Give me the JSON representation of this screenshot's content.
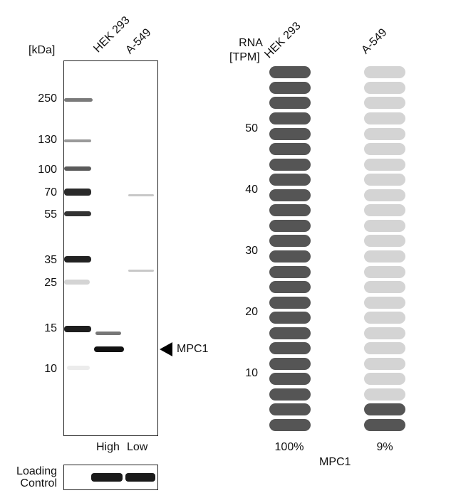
{
  "western_blot": {
    "unit_label": "[kDa]",
    "lanes": [
      "HEK 293",
      "A-549"
    ],
    "markers": [
      "250",
      "130",
      "100",
      "70",
      "55",
      "35",
      "25",
      "15",
      "10"
    ],
    "target_label": "MPC1",
    "exposure_labels": [
      "High",
      "Low"
    ],
    "loading_control_label": [
      "Loading",
      "Control"
    ]
  },
  "rna": {
    "axis_title": [
      "RNA",
      "[TPM]"
    ],
    "cell_lines": [
      "HEK 293",
      "A-549"
    ],
    "ticks": [
      "10",
      "20",
      "30",
      "40",
      "50"
    ],
    "percentages": [
      "100%",
      "9%"
    ],
    "gene": "MPC1",
    "colors": {
      "filled": "#555555",
      "empty": "#d4d4d4"
    }
  },
  "chart_data": {
    "type": "bar",
    "categories": [
      "HEK 293",
      "A-549"
    ],
    "values_percent": [
      100,
      9
    ],
    "segments_total": 24,
    "segments_filled": [
      24,
      2
    ],
    "ylabel": "RNA [TPM]",
    "ylim": [
      0,
      60
    ]
  }
}
